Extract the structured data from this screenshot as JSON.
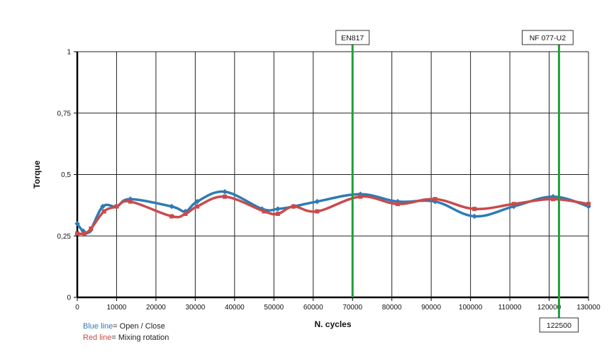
{
  "chart_data": {
    "type": "line",
    "title": "",
    "xlabel": "N. cycles",
    "ylabel": "Torque",
    "xlim": [
      0,
      130000
    ],
    "ylim": [
      0,
      1
    ],
    "x_ticks": [
      0,
      10000,
      20000,
      30000,
      40000,
      50000,
      60000,
      70000,
      80000,
      90000,
      100000,
      110000,
      120000,
      130000
    ],
    "y_ticks": [
      0,
      0.25,
      0.5,
      0.75,
      1
    ],
    "y_tick_labels": [
      "0",
      "0,25",
      "0,5",
      "0,75",
      "1"
    ],
    "grid": true,
    "series": [
      {
        "name": "Open / Close",
        "color": "#2E7BB5",
        "marker": "diamond",
        "x": [
          0,
          1500,
          3200,
          6500,
          10000,
          13500,
          24000,
          27500,
          30500,
          37500,
          47000,
          51000,
          55000,
          61000,
          72000,
          81500,
          91000,
          101000,
          111000,
          121000,
          130000
        ],
        "y": [
          0.3,
          0.27,
          0.27,
          0.37,
          0.37,
          0.4,
          0.37,
          0.35,
          0.39,
          0.43,
          0.36,
          0.36,
          0.37,
          0.39,
          0.42,
          0.39,
          0.39,
          0.33,
          0.37,
          0.41,
          0.37
        ]
      },
      {
        "name": "Mixing rotation",
        "color": "#C84B4B",
        "marker": "square",
        "x": [
          0,
          1800,
          3500,
          6800,
          10000,
          13500,
          24000,
          27500,
          30500,
          37500,
          47500,
          51000,
          55000,
          61000,
          72000,
          81500,
          91000,
          101000,
          111000,
          121000,
          130000
        ],
        "y": [
          0.26,
          0.26,
          0.28,
          0.35,
          0.37,
          0.39,
          0.33,
          0.34,
          0.37,
          0.41,
          0.35,
          0.34,
          0.37,
          0.35,
          0.41,
          0.38,
          0.4,
          0.36,
          0.38,
          0.4,
          0.38
        ]
      }
    ],
    "reference_lines": [
      {
        "x": 70000,
        "label": "EN817",
        "color": "#1E9E3C"
      },
      {
        "x": 122500,
        "label": "NF 077-U2",
        "value_label": "122500",
        "color": "#1E9E3C"
      }
    ]
  },
  "legend": {
    "blue_prefix": "Blue line",
    "blue_suffix": "= Open / Close",
    "red_prefix": "Red line",
    "red_suffix": "= Mixing rotation"
  }
}
